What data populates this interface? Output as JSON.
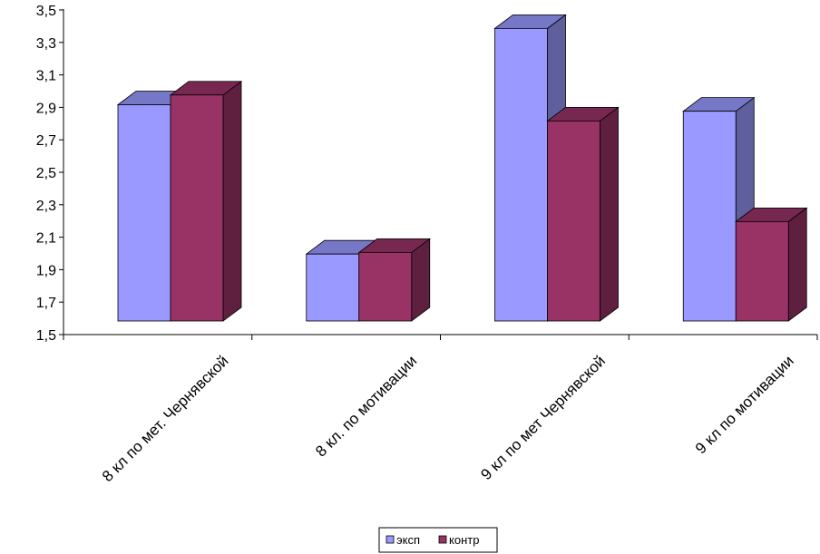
{
  "chart_data": {
    "type": "bar",
    "categories": [
      "8 кл по мет. Чернявской",
      "8 кл. по мотивации",
      "9 кл по мет Чернявской",
      "9 кл по мотивации"
    ],
    "series": [
      {
        "name": "эксп",
        "values": [
          3.0,
          2.08,
          3.47,
          2.96
        ],
        "color": "#9999FF"
      },
      {
        "name": "контр",
        "values": [
          3.06,
          2.09,
          2.9,
          2.28
        ],
        "color": "#993366"
      }
    ],
    "ylim": [
      1.5,
      3.5
    ],
    "yticks": [
      "1,5",
      "1,7",
      "1,9",
      "2,1",
      "2,3",
      "2,5",
      "2,7",
      "2,9",
      "3,1",
      "3,3",
      "3,5"
    ],
    "grid": false,
    "legend_position": "bottom"
  }
}
